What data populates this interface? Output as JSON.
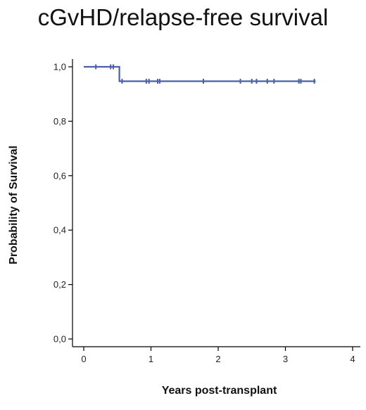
{
  "chart_data": {
    "type": "line",
    "title": "cGvHD/relapse-free survival",
    "xlabel": "Years post-transplant",
    "ylabel": "Probability of Survival",
    "xlim": [
      0,
      4
    ],
    "ylim": [
      0,
      1
    ],
    "x_ticks": [
      0,
      1,
      2,
      3,
      4
    ],
    "x_tick_labels": [
      "0",
      "1",
      "2",
      "3",
      "4"
    ],
    "y_ticks": [
      0,
      0.2,
      0.4,
      0.6,
      0.8,
      1.0
    ],
    "y_tick_labels": [
      "0,0",
      "0,2",
      "0,4",
      "0,6",
      "0,8",
      "1,0"
    ],
    "grid": false,
    "line_color": "#4a5fa8",
    "series": [
      {
        "step_curve": [
          [
            0,
            1.0
          ],
          [
            0.53,
            1.0
          ],
          [
            0.53,
            0.947
          ],
          [
            3.45,
            0.947
          ]
        ],
        "censor_points": [
          [
            0.18,
            1.0
          ],
          [
            0.4,
            1.0
          ],
          [
            0.44,
            1.0
          ],
          [
            0.57,
            0.947
          ],
          [
            0.93,
            0.947
          ],
          [
            0.97,
            0.947
          ],
          [
            1.1,
            0.947
          ],
          [
            1.13,
            0.947
          ],
          [
            1.78,
            0.947
          ],
          [
            2.33,
            0.947
          ],
          [
            2.5,
            0.947
          ],
          [
            2.57,
            0.947
          ],
          [
            2.73,
            0.947
          ],
          [
            2.83,
            0.947
          ],
          [
            3.2,
            0.947
          ],
          [
            3.23,
            0.947
          ],
          [
            3.43,
            0.947
          ]
        ]
      }
    ]
  }
}
